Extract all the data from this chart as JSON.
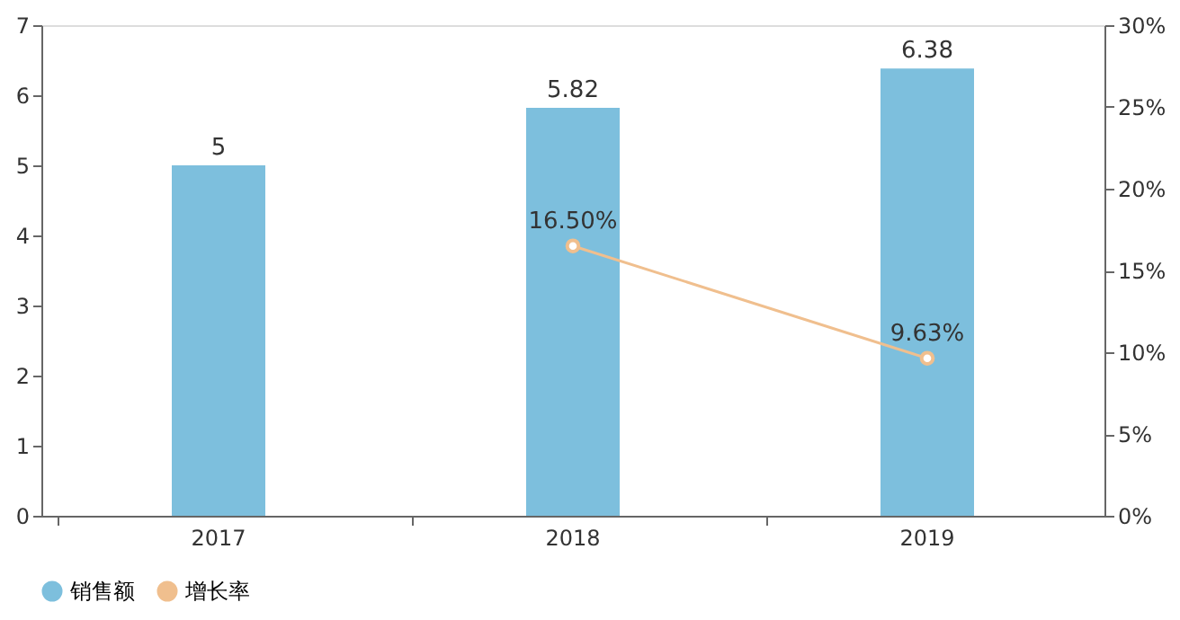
{
  "chart_data": {
    "type": "bar",
    "categories": [
      "2017",
      "2018",
      "2019"
    ],
    "series": [
      {
        "name": "销售额",
        "color": "#7dbfdd",
        "values": [
          5,
          5.82,
          6.38
        ],
        "value_labels": [
          "5",
          "5.82",
          "6.38"
        ]
      },
      {
        "name": "增长率",
        "type": "line",
        "axis": "y2",
        "color": "#f0bf8e",
        "marker": "circle",
        "values": [
          null,
          16.5,
          9.63
        ],
        "value_labels": [
          null,
          "16.50%",
          "9.63%"
        ]
      }
    ],
    "ylim": [
      0,
      7
    ],
    "yticks": [
      0,
      1,
      2,
      3,
      4,
      5,
      6,
      7
    ],
    "y2lim": [
      0,
      30
    ],
    "y2ticks": [
      {
        "value": 0,
        "label": "0%"
      },
      {
        "value": 5,
        "label": "5%"
      },
      {
        "value": 10,
        "label": "10%"
      },
      {
        "value": 15,
        "label": "15%"
      },
      {
        "value": 20,
        "label": "20%"
      },
      {
        "value": 25,
        "label": "25%"
      },
      {
        "value": 30,
        "label": "30%"
      }
    ],
    "grid": false,
    "legend": "bottom"
  }
}
